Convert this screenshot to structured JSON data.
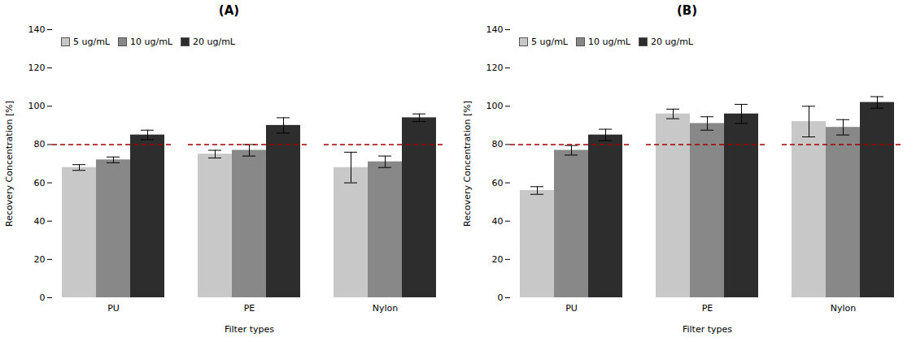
{
  "chart_data": [
    {
      "type": "bar",
      "title": "(A)",
      "categories": [
        "PU",
        "PE",
        "Nylon"
      ],
      "series": [
        {
          "name": "5 ug/mL",
          "color": "#c8c8c8",
          "values": [
            68,
            75,
            68
          ],
          "errors": [
            1.5,
            2.0,
            8.0
          ]
        },
        {
          "name": "10 ug/mL",
          "color": "#888888",
          "values": [
            72,
            77,
            71
          ],
          "errors": [
            1.5,
            3.0,
            3.0
          ]
        },
        {
          "name": "20 ug/mL",
          "color": "#2d2d2d",
          "values": [
            85,
            90,
            94
          ],
          "errors": [
            2.5,
            4.0,
            2.0
          ]
        }
      ],
      "xlabel": "Filter types",
      "ylabel": "Recovery Concentration [%]",
      "ylim": [
        0,
        140
      ],
      "yticks": [
        0,
        20,
        40,
        60,
        80,
        100,
        120,
        140
      ],
      "hline": {
        "y": 80,
        "color": "#a00000",
        "line_style": "dashed"
      },
      "legend": "upper left",
      "grid": false
    },
    {
      "type": "bar",
      "title": "(B)",
      "categories": [
        "PU",
        "PE",
        "Nylon"
      ],
      "series": [
        {
          "name": "5 ug/mL",
          "color": "#c8c8c8",
          "values": [
            56,
            96,
            92
          ],
          "errors": [
            2.0,
            2.5,
            8.0
          ]
        },
        {
          "name": "10 ug/mL",
          "color": "#888888",
          "values": [
            77,
            91,
            89
          ],
          "errors": [
            2.5,
            3.5,
            4.0
          ]
        },
        {
          "name": "20 ug/mL",
          "color": "#2d2d2d",
          "values": [
            85,
            96,
            102
          ],
          "errors": [
            3.0,
            5.0,
            3.0
          ]
        }
      ],
      "xlabel": "Filter types",
      "ylabel": "Recovery Concentration [%]",
      "ylim": [
        0,
        140
      ],
      "yticks": [
        0,
        20,
        40,
        60,
        80,
        100,
        120,
        140
      ],
      "hline": {
        "y": 80,
        "color": "#a00000",
        "line_style": "dashed"
      },
      "legend": "upper left",
      "grid": false
    }
  ]
}
